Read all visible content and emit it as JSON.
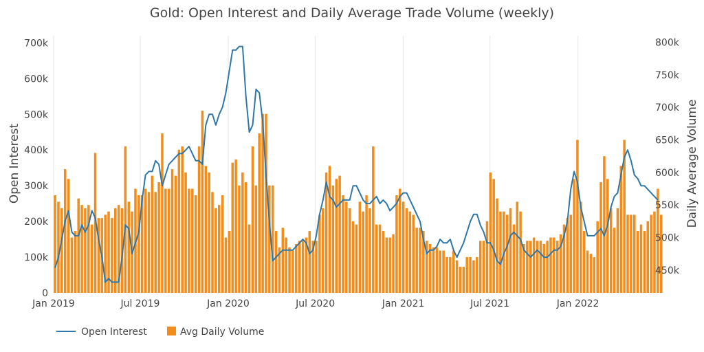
{
  "chart_data": {
    "type": "bar+line",
    "title": "Gold: Open Interest and Daily Average Trade Volume (weekly)",
    "x_axis": {
      "range": [
        "2019-01-01",
        "2022-05-31"
      ],
      "ticks": [
        "Jan 2019",
        "Jul 2019",
        "Jan 2020",
        "Jul 2020",
        "Jan 2021",
        "Jul 2021",
        "Jan 2022"
      ]
    },
    "y_left": {
      "label": "Open Interest",
      "range": [
        0,
        720000
      ],
      "ticks": [
        "0",
        "100k",
        "200k",
        "300k",
        "400k",
        "500k",
        "600k",
        "700k"
      ]
    },
    "y_right": {
      "label": "Daily Average Volume",
      "range": [
        415000,
        810000
      ],
      "ticks": [
        "450k",
        "500k",
        "550k",
        "600k",
        "650k",
        "700k",
        "750k",
        "800k"
      ]
    },
    "legend": {
      "position": "bottom-left",
      "items": [
        {
          "label": "Open Interest",
          "kind": "line",
          "color": "#2e77a6"
        },
        {
          "label": "Avg Daily Volume",
          "kind": "bar",
          "color": "#f28c1c"
        }
      ]
    },
    "series": [
      {
        "name": "Open Interest",
        "axis": "left",
        "kind": "line",
        "color": "#2e77a6",
        "x_start": "2019-01-01",
        "interval_days": 7,
        "values": [
          70000,
          100000,
          150000,
          200000,
          230000,
          170000,
          160000,
          160000,
          190000,
          170000,
          190000,
          230000,
          210000,
          150000,
          100000,
          30000,
          40000,
          30000,
          30000,
          30000,
          100000,
          190000,
          180000,
          110000,
          140000,
          170000,
          260000,
          330000,
          340000,
          340000,
          370000,
          360000,
          300000,
          330000,
          360000,
          370000,
          380000,
          390000,
          390000,
          400000,
          410000,
          390000,
          370000,
          370000,
          360000,
          470000,
          500000,
          500000,
          470000,
          500000,
          520000,
          560000,
          620000,
          680000,
          680000,
          690000,
          690000,
          550000,
          450000,
          470000,
          570000,
          560000,
          480000,
          330000,
          200000,
          90000,
          100000,
          110000,
          120000,
          120000,
          120000,
          120000,
          130000,
          140000,
          150000,
          140000,
          110000,
          120000,
          160000,
          220000,
          260000,
          310000,
          270000,
          260000,
          240000,
          250000,
          260000,
          260000,
          260000,
          300000,
          300000,
          280000,
          260000,
          250000,
          250000,
          260000,
          270000,
          250000,
          260000,
          250000,
          230000,
          240000,
          250000,
          270000,
          280000,
          280000,
          260000,
          240000,
          220000,
          200000,
          150000,
          110000,
          120000,
          120000,
          130000,
          150000,
          140000,
          140000,
          150000,
          120000,
          100000,
          120000,
          140000,
          170000,
          200000,
          220000,
          220000,
          190000,
          170000,
          140000,
          140000,
          120000,
          90000,
          80000,
          110000,
          130000,
          160000,
          170000,
          160000,
          150000,
          120000,
          110000,
          100000,
          110000,
          120000,
          110000,
          100000,
          100000,
          110000,
          120000,
          120000,
          130000,
          160000,
          200000,
          290000,
          340000,
          310000,
          240000,
          200000,
          160000,
          160000,
          160000,
          170000,
          180000,
          160000,
          190000,
          240000,
          270000,
          280000,
          330000,
          380000,
          400000,
          370000,
          330000,
          320000,
          300000,
          300000,
          290000,
          280000,
          270000,
          260000
        ]
      },
      {
        "name": "Avg Daily Volume",
        "axis": "right",
        "kind": "bar",
        "color": "#f28c1c",
        "x_start": "2019-01-01",
        "interval_days": 7,
        "values": [
          565000,
          555000,
          545000,
          605000,
          590000,
          500000,
          510000,
          560000,
          550000,
          545000,
          550000,
          520000,
          630000,
          530000,
          530000,
          535000,
          540000,
          530000,
          545000,
          550000,
          545000,
          640000,
          555000,
          540000,
          575000,
          565000,
          565000,
          575000,
          570000,
          595000,
          570000,
          585000,
          660000,
          575000,
          575000,
          605000,
          595000,
          635000,
          640000,
          600000,
          575000,
          575000,
          565000,
          640000,
          695000,
          610000,
          600000,
          570000,
          545000,
          550000,
          565000,
          500000,
          510000,
          615000,
          620000,
          580000,
          600000,
          585000,
          520000,
          640000,
          580000,
          660000,
          690000,
          690000,
          580000,
          580000,
          510000,
          485000,
          515000,
          500000,
          485000,
          480000,
          490000,
          495000,
          495000,
          500000,
          510000,
          495000,
          495000,
          535000,
          545000,
          600000,
          610000,
          580000,
          590000,
          595000,
          565000,
          555000,
          545000,
          525000,
          520000,
          555000,
          540000,
          565000,
          545000,
          640000,
          520000,
          520000,
          510000,
          500000,
          500000,
          505000,
          565000,
          575000,
          555000,
          545000,
          540000,
          535000,
          515000,
          515000,
          510000,
          495000,
          490000,
          485000,
          485000,
          480000,
          480000,
          470000,
          470000,
          480000,
          465000,
          455000,
          455000,
          470000,
          470000,
          465000,
          470000,
          495000,
          495000,
          525000,
          600000,
          590000,
          560000,
          540000,
          540000,
          535000,
          545000,
          520000,
          555000,
          540000,
          490000,
          495000,
          495000,
          500000,
          495000,
          495000,
          490000,
          495000,
          500000,
          500000,
          495000,
          505000,
          520000,
          530000,
          535000,
          590000,
          650000,
          555000,
          510000,
          480000,
          475000,
          470000,
          525000,
          585000,
          625000,
          590000,
          545000,
          515000,
          545000,
          610000,
          650000,
          535000,
          535000,
          535000,
          510000,
          520000,
          510000,
          525000,
          535000,
          540000,
          575000,
          535000
        ]
      }
    ]
  }
}
